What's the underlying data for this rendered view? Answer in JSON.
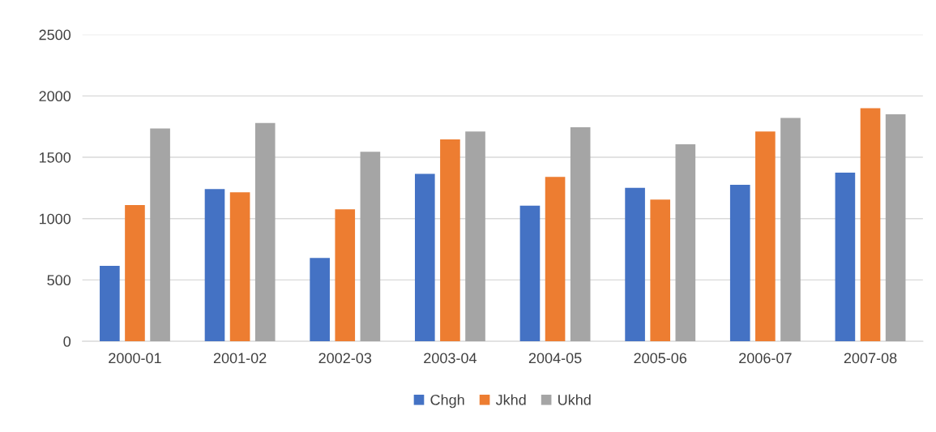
{
  "chart_data": {
    "type": "bar",
    "categories": [
      "2000-01",
      "2001-02",
      "2002-03",
      "2003-04",
      "2004-05",
      "2005-06",
      "2006-07",
      "2007-08"
    ],
    "series": [
      {
        "name": "Chgh",
        "color": "#4472c4",
        "values": [
          615,
          1240,
          680,
          1365,
          1105,
          1250,
          1275,
          1375
        ]
      },
      {
        "name": "Jkhd",
        "color": "#ed7d31",
        "values": [
          1110,
          1215,
          1075,
          1645,
          1340,
          1155,
          1710,
          1900
        ]
      },
      {
        "name": "Ukhd",
        "color": "#a5a5a5",
        "values": [
          1735,
          1780,
          1545,
          1710,
          1745,
          1605,
          1820,
          1850
        ]
      }
    ],
    "ylim": [
      0,
      2500
    ],
    "yticks": [
      0,
      500,
      1000,
      1500,
      2000,
      2500
    ],
    "grid": "y",
    "legend": "bottom"
  }
}
